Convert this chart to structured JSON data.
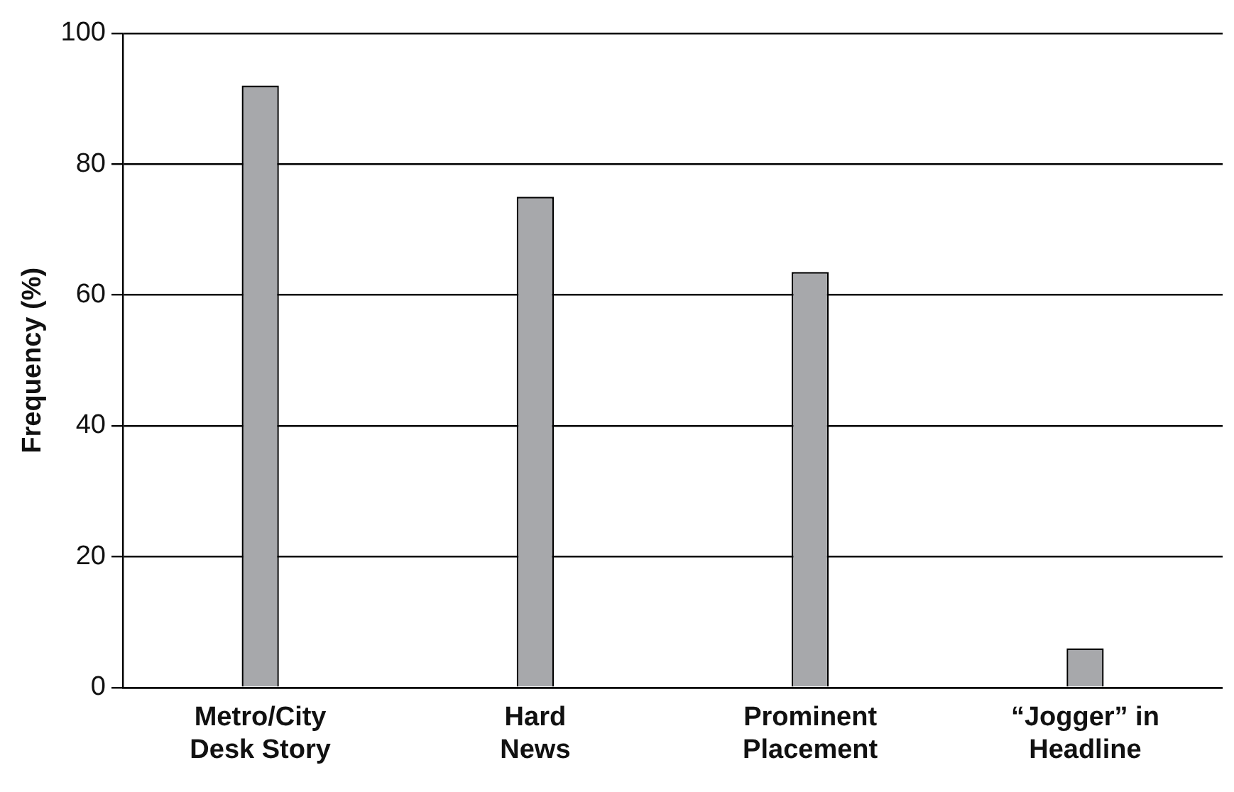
{
  "chart_data": {
    "type": "bar",
    "ylabel": "Frequency (%)",
    "categories": [
      "Metro/City\nDesk Story",
      "Hard\nNews",
      "Prominent\nPlacement",
      "“Jogger” in\nHeadline"
    ],
    "values": [
      92,
      75,
      63.5,
      6
    ],
    "color": "#a7a8ab",
    "ylim": [
      0,
      100
    ],
    "yticks": [
      0,
      20,
      40,
      60,
      80,
      100
    ],
    "grid": "y",
    "legend": false
  }
}
